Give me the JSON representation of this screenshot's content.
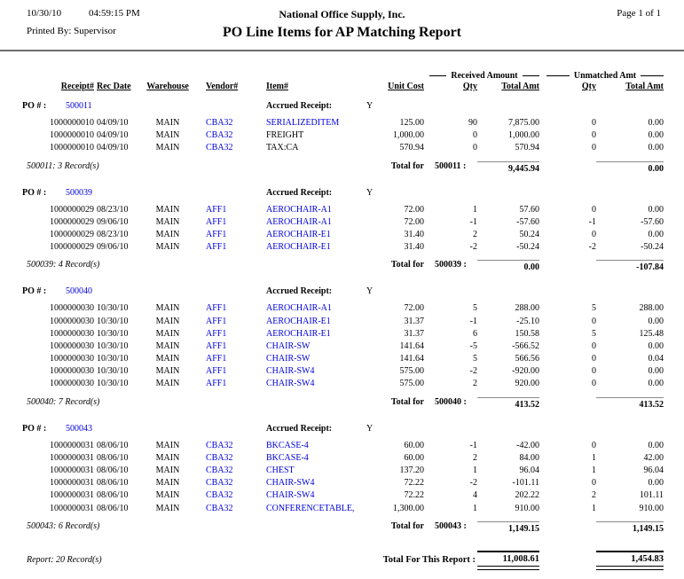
{
  "page_header": {
    "date": "10/30/10",
    "time": "04:59:15 PM",
    "company": "National Office Supply, Inc.",
    "page": "Page 1 of 1",
    "printed_by": "Printed By: Supervisor",
    "title": "PO Line Items for AP Matching Report"
  },
  "table": {
    "group_received": "Received Amount",
    "group_unmatched": "Unmatched Amt",
    "columns": [
      "Receipt#",
      "Rec Date",
      "Warehouse",
      "Vendor#",
      "Item#",
      "Unit Cost",
      "Qty",
      "Total Amt",
      "Qty",
      "Total Amt"
    ],
    "po_label": "PO # :",
    "accrued_label": "Accrued Receipt:",
    "total_for_label": "Total for"
  },
  "sections": [
    {
      "po_number": "500011",
      "accrued_receipt": "Y",
      "rows": [
        {
          "receipt": "1000000010",
          "rec_date": "04/09/10",
          "warehouse": "MAIN",
          "vendor": "CBA32",
          "item": "SERIALIZEDITEM",
          "item_link": true,
          "unit_cost": "125.00",
          "qty": "90",
          "total_amt": "7,875.00",
          "unm_qty": "0",
          "unm_total_amt": "0.00"
        },
        {
          "receipt": "1000000010",
          "rec_date": "04/09/10",
          "warehouse": "MAIN",
          "vendor": "CBA32",
          "item": "FREIGHT",
          "item_link": false,
          "unit_cost": "1,000.00",
          "qty": "0",
          "total_amt": "1,000.00",
          "unm_qty": "0",
          "unm_total_amt": "0.00"
        },
        {
          "receipt": "1000000010",
          "rec_date": "04/09/10",
          "warehouse": "MAIN",
          "vendor": "CBA32",
          "item": "TAX:CA",
          "item_link": false,
          "unit_cost": "570.94",
          "qty": "0",
          "total_amt": "570.94",
          "unm_qty": "0",
          "unm_total_amt": "0.00"
        }
      ],
      "record_count": "500011: 3 Record(s)",
      "total_po_label": "500011 :",
      "total_received": "9,445.94",
      "total_unmatched": "0.00"
    },
    {
      "po_number": "500039",
      "accrued_receipt": "Y",
      "rows": [
        {
          "receipt": "1000000029",
          "rec_date": "08/23/10",
          "warehouse": "MAIN",
          "vendor": "AFF1",
          "item": "AEROCHAIR-A1",
          "item_link": true,
          "unit_cost": "72.00",
          "qty": "1",
          "total_amt": "57.60",
          "unm_qty": "0",
          "unm_total_amt": "0.00"
        },
        {
          "receipt": "1000000029",
          "rec_date": "09/06/10",
          "warehouse": "MAIN",
          "vendor": "AFF1",
          "item": "AEROCHAIR-A1",
          "item_link": true,
          "unit_cost": "72.00",
          "qty": "-1",
          "total_amt": "-57.60",
          "unm_qty": "-1",
          "unm_total_amt": "-57.60"
        },
        {
          "receipt": "1000000029",
          "rec_date": "08/23/10",
          "warehouse": "MAIN",
          "vendor": "AFF1",
          "item": "AEROCHAIR-E1",
          "item_link": true,
          "unit_cost": "31.40",
          "qty": "2",
          "total_amt": "50.24",
          "unm_qty": "0",
          "unm_total_amt": "0.00"
        },
        {
          "receipt": "1000000029",
          "rec_date": "09/06/10",
          "warehouse": "MAIN",
          "vendor": "AFF1",
          "item": "AEROCHAIR-E1",
          "item_link": true,
          "unit_cost": "31.40",
          "qty": "-2",
          "total_amt": "-50.24",
          "unm_qty": "-2",
          "unm_total_amt": "-50.24"
        }
      ],
      "record_count": "500039: 4 Record(s)",
      "total_po_label": "500039 :",
      "total_received": "0.00",
      "total_unmatched": "-107.84"
    },
    {
      "po_number": "500040",
      "accrued_receipt": "Y",
      "rows": [
        {
          "receipt": "1000000030",
          "rec_date": "10/30/10",
          "warehouse": "MAIN",
          "vendor": "AFF1",
          "item": "AEROCHAIR-A1",
          "item_link": true,
          "unit_cost": "72.00",
          "qty": "5",
          "total_amt": "288.00",
          "unm_qty": "5",
          "unm_total_amt": "288.00"
        },
        {
          "receipt": "1000000030",
          "rec_date": "10/30/10",
          "warehouse": "MAIN",
          "vendor": "AFF1",
          "item": "AEROCHAIR-E1",
          "item_link": true,
          "unit_cost": "31.37",
          "qty": "-1",
          "total_amt": "-25.10",
          "unm_qty": "0",
          "unm_total_amt": "0.00"
        },
        {
          "receipt": "1000000030",
          "rec_date": "10/30/10",
          "warehouse": "MAIN",
          "vendor": "AFF1",
          "item": "AEROCHAIR-E1",
          "item_link": true,
          "unit_cost": "31.37",
          "qty": "6",
          "total_amt": "150.58",
          "unm_qty": "5",
          "unm_total_amt": "125.48"
        },
        {
          "receipt": "1000000030",
          "rec_date": "10/30/10",
          "warehouse": "MAIN",
          "vendor": "AFF1",
          "item": "CHAIR-SW",
          "item_link": true,
          "unit_cost": "141.64",
          "qty": "-5",
          "total_amt": "-566.52",
          "unm_qty": "0",
          "unm_total_amt": "0.00"
        },
        {
          "receipt": "1000000030",
          "rec_date": "10/30/10",
          "warehouse": "MAIN",
          "vendor": "AFF1",
          "item": "CHAIR-SW",
          "item_link": true,
          "unit_cost": "141.64",
          "qty": "5",
          "total_amt": "566.56",
          "unm_qty": "0",
          "unm_total_amt": "0.04"
        },
        {
          "receipt": "1000000030",
          "rec_date": "10/30/10",
          "warehouse": "MAIN",
          "vendor": "AFF1",
          "item": "CHAIR-SW4",
          "item_link": true,
          "unit_cost": "575.00",
          "qty": "-2",
          "total_amt": "-920.00",
          "unm_qty": "0",
          "unm_total_amt": "0.00"
        },
        {
          "receipt": "1000000030",
          "rec_date": "10/30/10",
          "warehouse": "MAIN",
          "vendor": "AFF1",
          "item": "CHAIR-SW4",
          "item_link": true,
          "unit_cost": "575.00",
          "qty": "2",
          "total_amt": "920.00",
          "unm_qty": "0",
          "unm_total_amt": "0.00"
        }
      ],
      "record_count": "500040: 7 Record(s)",
      "total_po_label": "500040 :",
      "total_received": "413.52",
      "total_unmatched": "413.52"
    },
    {
      "po_number": "500043",
      "accrued_receipt": "Y",
      "rows": [
        {
          "receipt": "1000000031",
          "rec_date": "08/06/10",
          "warehouse": "MAIN",
          "vendor": "CBA32",
          "item": "BKCASE-4",
          "item_link": true,
          "unit_cost": "60.00",
          "qty": "-1",
          "total_amt": "-42.00",
          "unm_qty": "0",
          "unm_total_amt": "0.00"
        },
        {
          "receipt": "1000000031",
          "rec_date": "08/06/10",
          "warehouse": "MAIN",
          "vendor": "CBA32",
          "item": "BKCASE-4",
          "item_link": true,
          "unit_cost": "60.00",
          "qty": "2",
          "total_amt": "84.00",
          "unm_qty": "1",
          "unm_total_amt": "42.00"
        },
        {
          "receipt": "1000000031",
          "rec_date": "08/06/10",
          "warehouse": "MAIN",
          "vendor": "CBA32",
          "item": "CHEST",
          "item_link": true,
          "unit_cost": "137.20",
          "qty": "1",
          "total_amt": "96.04",
          "unm_qty": "1",
          "unm_total_amt": "96.04"
        },
        {
          "receipt": "1000000031",
          "rec_date": "08/06/10",
          "warehouse": "MAIN",
          "vendor": "CBA32",
          "item": "CHAIR-SW4",
          "item_link": true,
          "unit_cost": "72.22",
          "qty": "-2",
          "total_amt": "-101.11",
          "unm_qty": "0",
          "unm_total_amt": "0.00"
        },
        {
          "receipt": "1000000031",
          "rec_date": "08/06/10",
          "warehouse": "MAIN",
          "vendor": "CBA32",
          "item": "CHAIR-SW4",
          "item_link": true,
          "unit_cost": "72.22",
          "qty": "4",
          "total_amt": "202.22",
          "unm_qty": "2",
          "unm_total_amt": "101.11"
        },
        {
          "receipt": "1000000031",
          "rec_date": "08/06/10",
          "warehouse": "MAIN",
          "vendor": "CBA32",
          "item": "CONFERENCETABLE,",
          "item_link": true,
          "unit_cost": "1,300.00",
          "qty": "1",
          "total_amt": "910.00",
          "unm_qty": "1",
          "unm_total_amt": "910.00"
        }
      ],
      "record_count": "500043: 6 Record(s)",
      "total_po_label": "500043 :",
      "total_received": "1,149.15",
      "total_unmatched": "1,149.15"
    }
  ],
  "report_footer": {
    "record_count": "Report: 20 Record(s)",
    "label": "Total For This Report :",
    "received": "11,008.61",
    "unmatched": "1,454.83"
  },
  "colors": {
    "link_blue": "#0000dc"
  }
}
